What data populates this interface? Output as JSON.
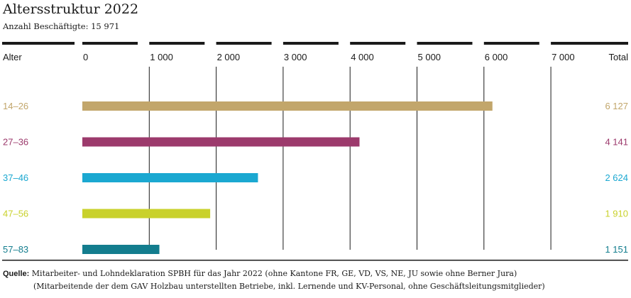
{
  "title": "Altersstruktur 2022",
  "subtitle": "Anzahl Beschäftigte: 15 971",
  "source": {
    "label": "Quelle:",
    "line1": "Mitarbeiter- und Lohndeklaration SPBH für das Jahr 2022 (ohne Kantone FR, GE, VD, VS, NE, JU sowie ohne Berner Jura)",
    "line2": "(Mitarbeitende der dem GAV Holzbau unterstellten Betriebe, inkl. Lernende und KV-Personal, ohne Geschäftsleitungsmitglieder)"
  },
  "chart_data": {
    "type": "bar",
    "orientation": "horizontal",
    "xlim": [
      0,
      8000
    ],
    "tick_values": [
      0,
      1000,
      2000,
      3000,
      4000,
      5000,
      6000,
      7000
    ],
    "tick_labels": [
      "0",
      "1 000",
      "2 000",
      "3 000",
      "4 000",
      "5 000",
      "6 000",
      "7 000"
    ],
    "category_header": "Alter",
    "total_header": "Total",
    "grid": true,
    "categories": [
      "14–26",
      "27–36",
      "37–46",
      "47–56",
      "57–83"
    ],
    "values": [
      6127,
      4141,
      2624,
      1910,
      1151
    ],
    "value_labels": [
      "6 127",
      "4 141",
      "2 624",
      "1 910",
      "1 151"
    ],
    "colors": [
      "#c2a66b",
      "#9c3a6c",
      "#1ba8d1",
      "#c9d12b",
      "#137d8e"
    ]
  }
}
